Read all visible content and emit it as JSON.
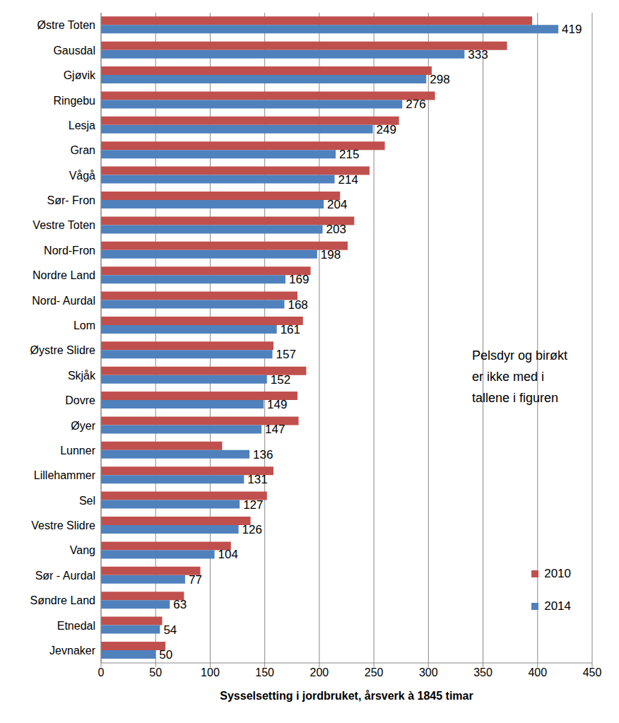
{
  "chart_data": {
    "type": "bar",
    "orientation": "horizontal",
    "x_label": "Sysselsetting i jordbruket, årsverk à 1845 timar",
    "annotation": "Pelsdyr og birøkt\ner ikke med i\ntallene i figuren",
    "categories": [
      "Østre Toten",
      "Gausdal",
      "Gjøvik",
      "Ringebu",
      "Lesja",
      "Gran",
      "Vågå",
      "Sør- Fron",
      "Vestre Toten",
      "Nord-Fron",
      "Nordre Land",
      "Nord- Aurdal",
      "Lom",
      "Øystre Slidre",
      "Skjåk",
      "Dovre",
      "Øyer",
      "Lunner",
      "Lillehammer",
      "Sel",
      "Vestre Slidre",
      "Vang",
      "Sør - Aurdal",
      "Søndre Land",
      "Etnedal",
      "Jevnaker"
    ],
    "series": [
      {
        "name": "2010",
        "color": "#c0504d",
        "values": [
          395,
          372,
          303,
          306,
          273,
          260,
          246,
          219,
          232,
          226,
          192,
          180,
          185,
          158,
          188,
          180,
          181,
          111,
          158,
          152,
          137,
          119,
          91,
          76,
          56,
          59
        ]
      },
      {
        "name": "2014",
        "color": "#4f81bd",
        "data_labels": true,
        "values": [
          419,
          333,
          298,
          276,
          249,
          215,
          214,
          204,
          203,
          198,
          169,
          168,
          161,
          157,
          152,
          149,
          147,
          136,
          131,
          127,
          126,
          104,
          77,
          63,
          54,
          50
        ]
      }
    ],
    "xlim": [
      0,
      450
    ],
    "xticks": [
      0,
      50,
      100,
      150,
      200,
      250,
      300,
      350,
      400,
      450
    ],
    "grid": true,
    "legend": "lower right"
  }
}
